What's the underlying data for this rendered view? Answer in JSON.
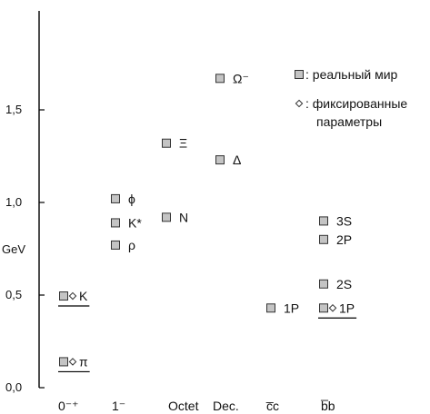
{
  "chart_data": {
    "type": "scatter",
    "ylabel": "GeV",
    "ylim": [
      0,
      2.0
    ],
    "yticks": [
      {
        "value": 0.0,
        "label": "0,0"
      },
      {
        "value": 0.5,
        "label": "0,5"
      },
      {
        "value": 1.0,
        "label": "1,0"
      },
      {
        "value": 1.5,
        "label": "1,5"
      }
    ],
    "categories": [
      "0⁻⁺",
      "1⁻",
      "Octet",
      "Dec.",
      "c̅c",
      "b̅b"
    ],
    "grid": false,
    "legend": {
      "position": "top-right",
      "items": [
        {
          "marker": "square",
          "label_lines": [
            ": реальный мир"
          ]
        },
        {
          "marker": "diamond",
          "label_lines": [
            ": фиксированные",
            "параметры"
          ]
        }
      ]
    },
    "points": [
      {
        "category": "0⁻⁺",
        "name": "π",
        "value": 0.14,
        "fixed": true,
        "underline": true
      },
      {
        "category": "0⁻⁺",
        "name": "K",
        "value": 0.495,
        "fixed": true,
        "underline": true
      },
      {
        "category": "1⁻",
        "name": "ρ",
        "value": 0.77,
        "fixed": false,
        "underline": false
      },
      {
        "category": "1⁻",
        "name": "K*",
        "value": 0.89,
        "fixed": false,
        "underline": false
      },
      {
        "category": "1⁻",
        "name": "ϕ",
        "value": 1.02,
        "fixed": false,
        "underline": false
      },
      {
        "category": "Octet",
        "name": "N",
        "value": 0.92,
        "fixed": false,
        "underline": false
      },
      {
        "category": "Octet",
        "name": "Ξ",
        "value": 1.32,
        "fixed": false,
        "underline": false
      },
      {
        "category": "Dec.",
        "name": "Δ",
        "value": 1.23,
        "fixed": false,
        "underline": false
      },
      {
        "category": "Dec.",
        "name": "Ω⁻",
        "value": 1.67,
        "fixed": false,
        "underline": false
      },
      {
        "category": "c̅c",
        "name": "1P",
        "value": 0.43,
        "fixed": false,
        "underline": false
      },
      {
        "category": "b̅b",
        "name": "1P",
        "value": 0.43,
        "fixed": true,
        "underline": true
      },
      {
        "category": "b̅b",
        "name": "2S",
        "value": 0.56,
        "fixed": false,
        "underline": false
      },
      {
        "category": "b̅b",
        "name": "2P",
        "value": 0.8,
        "fixed": false,
        "underline": false
      },
      {
        "category": "b̅b",
        "name": "3S",
        "value": 0.9,
        "fixed": false,
        "underline": false
      }
    ],
    "colors": {
      "marker_fill": "#c4c4c4",
      "marker_stroke": "#333333",
      "axis": "#000000"
    }
  }
}
